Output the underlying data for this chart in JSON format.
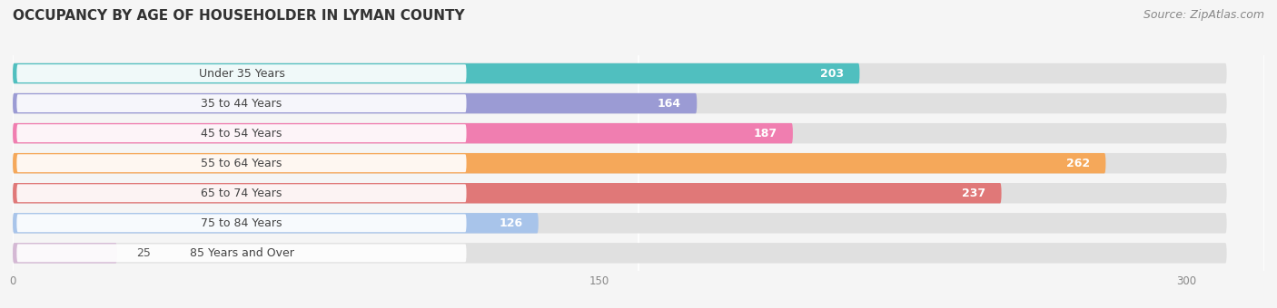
{
  "title": "OCCUPANCY BY AGE OF HOUSEHOLDER IN LYMAN COUNTY",
  "source": "Source: ZipAtlas.com",
  "categories": [
    "Under 35 Years",
    "35 to 44 Years",
    "45 to 54 Years",
    "55 to 64 Years",
    "65 to 74 Years",
    "75 to 84 Years",
    "85 Years and Over"
  ],
  "values": [
    203,
    164,
    187,
    262,
    237,
    126,
    25
  ],
  "bar_colors": [
    "#50BFBF",
    "#9B9BD4",
    "#F07EB0",
    "#F5A85A",
    "#E07878",
    "#A8C4EA",
    "#D4B8D4"
  ],
  "xlim_data": 300,
  "xlim_display": 320,
  "xticks": [
    0,
    150,
    300
  ],
  "background_color": "#f5f5f5",
  "bar_bg_color": "#e0e0e0",
  "title_fontsize": 11,
  "source_fontsize": 9,
  "bar_height": 0.68,
  "label_fontsize": 9,
  "value_fontsize": 9
}
